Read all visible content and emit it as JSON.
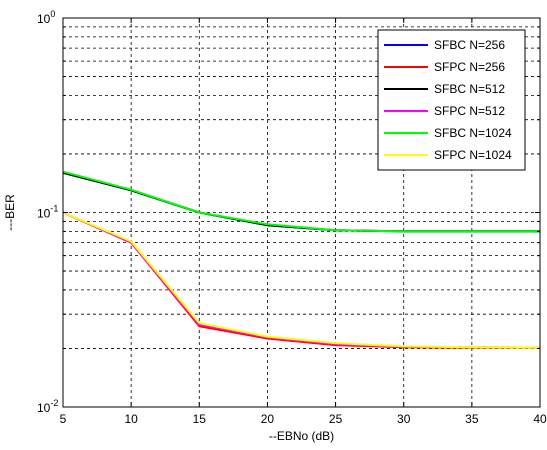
{
  "chart_data": {
    "type": "line",
    "title": "",
    "xlabel": "--EBNo (dB)",
    "ylabel": "---BER",
    "xlim": [
      5,
      40
    ],
    "ylim": [
      0.01,
      1
    ],
    "yscale": "log",
    "grid": true,
    "legend_position": "top-right",
    "x_ticks": [
      "5",
      "10",
      "15",
      "20",
      "25",
      "30",
      "35",
      "40"
    ],
    "y_ticks": [
      {
        "base": "10",
        "exp": "-2",
        "value": 0.01
      },
      {
        "base": "10",
        "exp": "-1",
        "value": 0.1
      },
      {
        "base": "10",
        "exp": "0",
        "value": 1
      }
    ],
    "x": [
      5,
      10,
      15,
      20,
      25,
      30,
      35,
      40
    ],
    "series": [
      {
        "name": "SFBC N=256",
        "color": "#0000ff",
        "values": [
          0.16,
          0.13,
          0.1,
          0.086,
          0.081,
          0.08,
          0.08,
          0.08
        ]
      },
      {
        "name": "SFPC N=256",
        "color": "#ff0000",
        "values": [
          0.1,
          0.07,
          0.026,
          0.0225,
          0.0208,
          0.0203,
          0.0202,
          0.0202
        ]
      },
      {
        "name": "SFBC N=512",
        "color": "#000000",
        "values": [
          0.16,
          0.13,
          0.1,
          0.086,
          0.081,
          0.08,
          0.08,
          0.08
        ]
      },
      {
        "name": "SFPC N=512",
        "color": "#ff00ff",
        "values": [
          0.1,
          0.07,
          0.0265,
          0.0228,
          0.021,
          0.0204,
          0.0203,
          0.0202
        ]
      },
      {
        "name": "SFBC N=1024",
        "color": "#00ff00",
        "values": [
          0.162,
          0.131,
          0.1,
          0.087,
          0.081,
          0.08,
          0.08,
          0.08
        ]
      },
      {
        "name": "SFPC N=1024",
        "color": "#ffff00",
        "values": [
          0.1,
          0.071,
          0.027,
          0.023,
          0.0213,
          0.0205,
          0.0203,
          0.0202
        ]
      }
    ]
  }
}
